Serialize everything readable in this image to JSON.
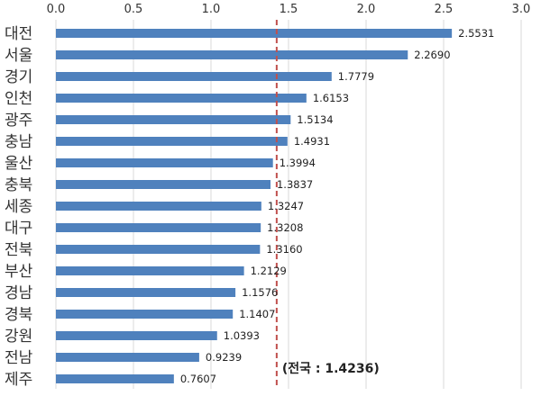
{
  "chart_data": {
    "type": "bar",
    "orientation": "horizontal",
    "categories": [
      "대전",
      "서울",
      "경기",
      "인천",
      "광주",
      "충남",
      "울산",
      "충북",
      "세종",
      "대구",
      "전북",
      "부산",
      "경남",
      "경북",
      "강원",
      "전남",
      "제주"
    ],
    "values": [
      2.5531,
      2.269,
      1.7779,
      1.6153,
      1.5134,
      1.4931,
      1.3994,
      1.3837,
      1.3247,
      1.3208,
      1.316,
      1.2129,
      1.1576,
      1.1407,
      1.0393,
      0.9239,
      0.7607
    ],
    "value_labels": [
      "2.5531",
      "2.2690",
      "1.7779",
      "1.6153",
      "1.5134",
      "1.4931",
      "1.3994",
      "1.3837",
      "1.3247",
      "1.3208",
      "1.3160",
      "1.2129",
      "1.1576",
      "1.1407",
      "1.0393",
      "0.9239",
      "0.7607"
    ],
    "xlim": [
      0,
      3
    ],
    "x_ticks": [
      "0.0",
      "0.5",
      "1.0",
      "1.5",
      "2.0",
      "2.5",
      "3.0"
    ],
    "x_tick_values": [
      0,
      0.5,
      1,
      1.5,
      2,
      2.5,
      3
    ],
    "x_axis_position": "top",
    "grid": "vertical",
    "reference_line": {
      "value": 1.4236,
      "label": "(전국 : 1.4236)",
      "style": "dashed"
    },
    "title": "",
    "xlabel": "",
    "ylabel": ""
  },
  "colors": {
    "bar": "#4f81bd",
    "reference_line": "#c0504d",
    "grid": "#d9d9d9",
    "text": "#333333"
  }
}
